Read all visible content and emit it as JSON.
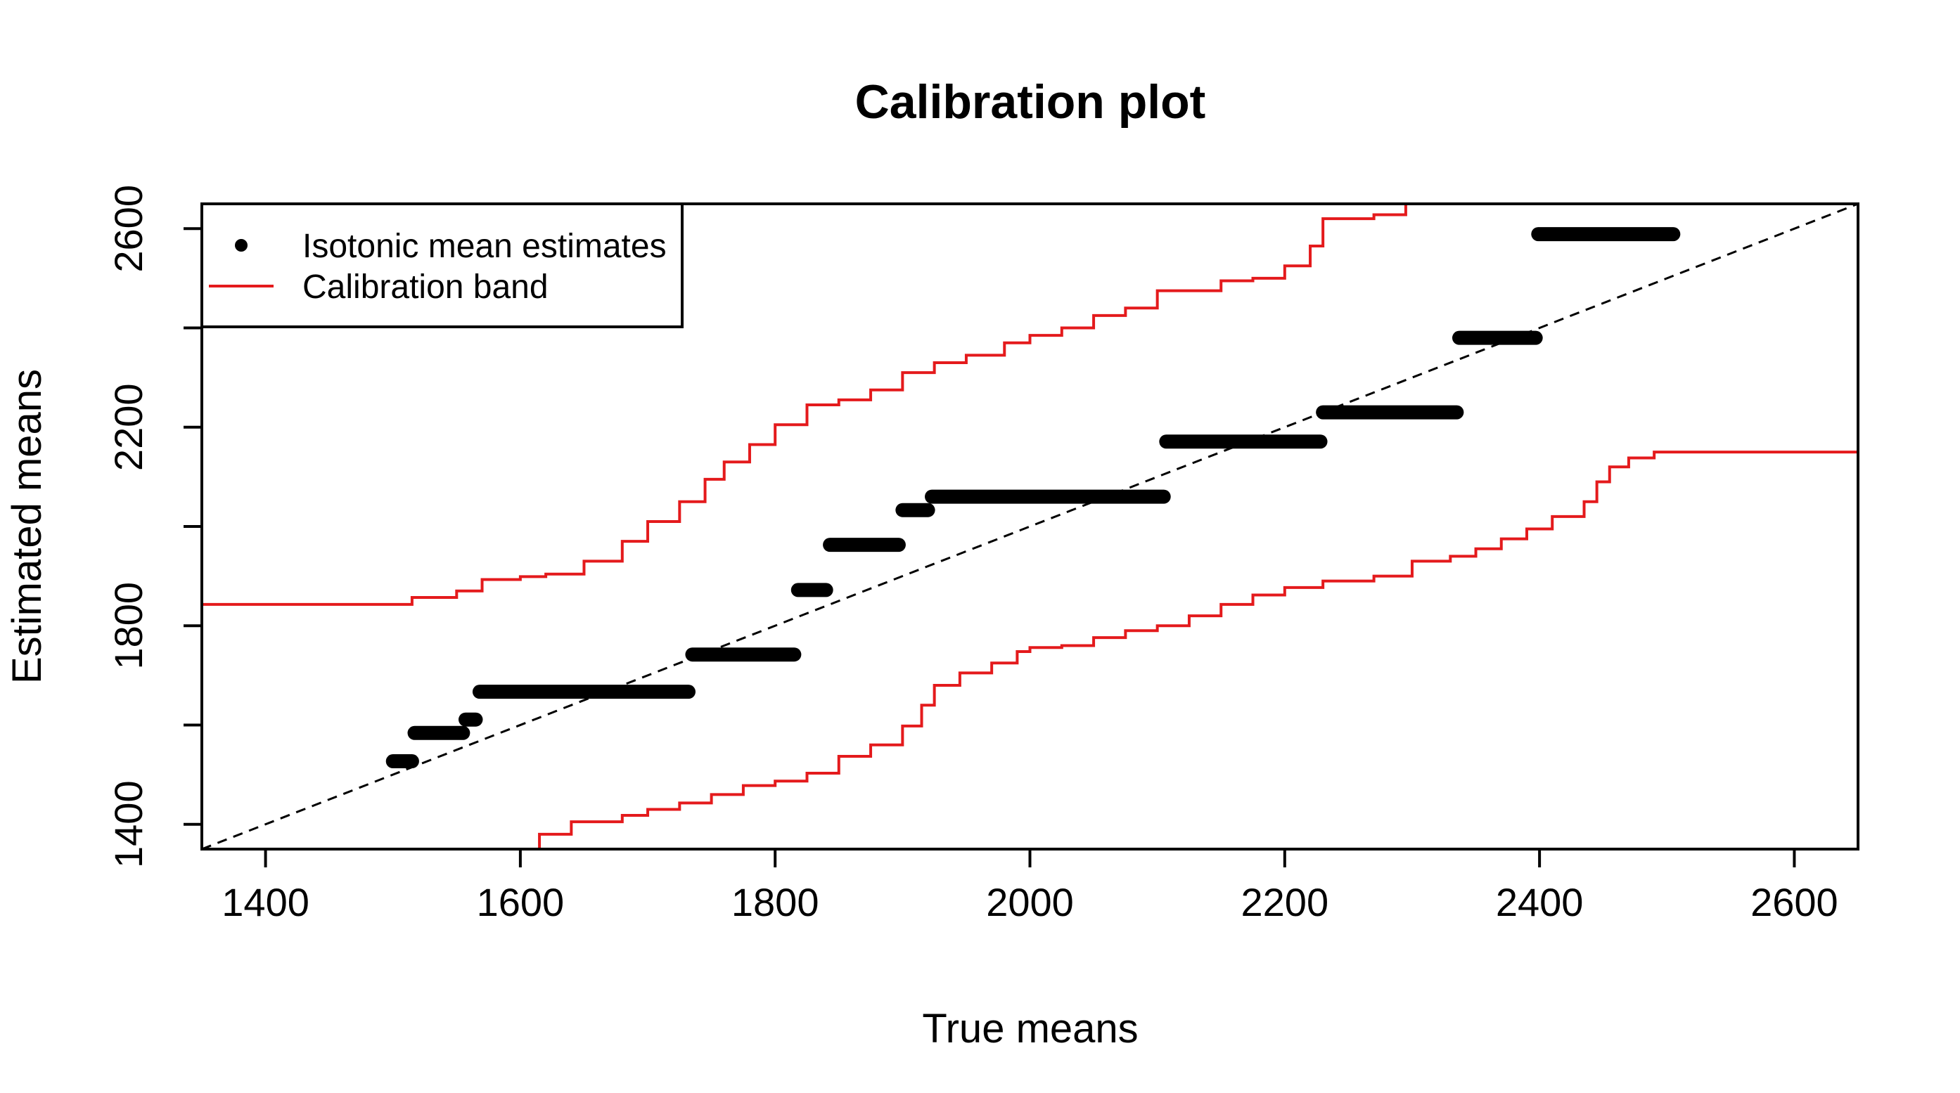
{
  "chart_data": {
    "type": "line",
    "title": "Calibration plot",
    "xlabel": "True means",
    "ylabel": "Estimated means",
    "xlim": [
      1350,
      2650
    ],
    "ylim": [
      1350,
      2650
    ],
    "x_ticks": [
      1400,
      1600,
      1800,
      2000,
      2200,
      2400,
      2600
    ],
    "y_ticks": [
      1400,
      1800,
      2200,
      2600
    ],
    "y_minor_ticks": [
      1600,
      2000,
      2400
    ],
    "grid": false,
    "legend": {
      "placement": "top-left",
      "entries": [
        {
          "label": "Isotonic mean estimates",
          "marker": "point",
          "color": "#000000"
        },
        {
          "label": "Calibration band",
          "marker": "line",
          "color": "#e41a1c"
        }
      ]
    },
    "reference_line": {
      "style": "dashed",
      "color": "#000000",
      "from": [
        1350,
        1350
      ],
      "to": [
        2650,
        2650
      ]
    },
    "isotonic_segments": [
      {
        "x_start": 1500,
        "x_end": 1515,
        "y": 1527
      },
      {
        "x_start": 1517,
        "x_end": 1555,
        "y": 1584
      },
      {
        "x_start": 1557,
        "x_end": 1565,
        "y": 1611
      },
      {
        "x_start": 1568,
        "x_end": 1732,
        "y": 1667
      },
      {
        "x_start": 1735,
        "x_end": 1815,
        "y": 1742
      },
      {
        "x_start": 1818,
        "x_end": 1840,
        "y": 1872
      },
      {
        "x_start": 1843,
        "x_end": 1897,
        "y": 1963
      },
      {
        "x_start": 1900,
        "x_end": 1920,
        "y": 2033
      },
      {
        "x_start": 1923,
        "x_end": 2105,
        "y": 2060
      },
      {
        "x_start": 2107,
        "x_end": 2228,
        "y": 2171
      },
      {
        "x_start": 2230,
        "x_end": 2335,
        "y": 2230
      },
      {
        "x_start": 2337,
        "x_end": 2397,
        "y": 2380
      },
      {
        "x_start": 2399,
        "x_end": 2505,
        "y": 2589
      }
    ],
    "upper_band": {
      "x": [
        1350,
        1500,
        1515,
        1550,
        1570,
        1600,
        1620,
        1650,
        1680,
        1700,
        1725,
        1745,
        1760,
        1780,
        1800,
        1825,
        1850,
        1875,
        1900,
        1925,
        1950,
        1980,
        2000,
        2025,
        2050,
        2075,
        2100,
        2150,
        2175,
        2200,
        2220,
        2230,
        2270,
        2295
      ],
      "y": [
        1843,
        1843,
        1857,
        1870,
        1893,
        1899,
        1904,
        1930,
        1970,
        2010,
        2050,
        2095,
        2130,
        2165,
        2205,
        2245,
        2255,
        2275,
        2310,
        2330,
        2345,
        2370,
        2385,
        2400,
        2425,
        2440,
        2475,
        2495,
        2500,
        2525,
        2565,
        2620,
        2628,
        2650
      ]
    },
    "lower_band": {
      "x": [
        1600,
        1615,
        1640,
        1680,
        1700,
        1725,
        1750,
        1775,
        1800,
        1825,
        1850,
        1875,
        1900,
        1915,
        1925,
        1945,
        1970,
        1990,
        2000,
        2025,
        2050,
        2075,
        2100,
        2125,
        2150,
        2175,
        2200,
        2230,
        2270,
        2300,
        2330,
        2350,
        2370,
        2390,
        2410,
        2435,
        2445,
        2455,
        2470,
        2490,
        2650
      ],
      "y": [
        1350,
        1380,
        1405,
        1418,
        1430,
        1443,
        1460,
        1478,
        1487,
        1503,
        1537,
        1560,
        1598,
        1640,
        1680,
        1705,
        1725,
        1748,
        1756,
        1760,
        1776,
        1790,
        1800,
        1820,
        1843,
        1862,
        1877,
        1890,
        1900,
        1930,
        1940,
        1955,
        1975,
        1995,
        2020,
        2050,
        2090,
        2120,
        2138,
        2150,
        2150
      ]
    }
  }
}
